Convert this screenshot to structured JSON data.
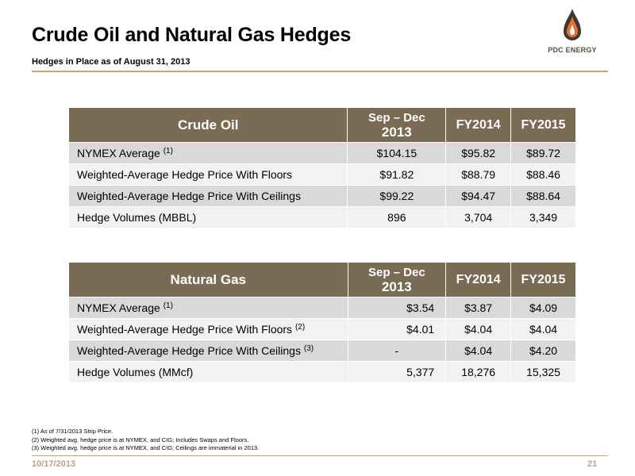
{
  "header": {
    "title": "Crude Oil and Natural Gas Hedges",
    "subtitle": "Hedges in Place as of August 31, 2013",
    "logo_text": "PDC ENERGY"
  },
  "colors": {
    "table_header": "#7a6b54",
    "row_shade": "#d9d9d9",
    "row_light": "#f2f2f2",
    "accent_rule": "#c8a574",
    "logo_orange": "#e8722b",
    "logo_dark": "#3d3a36"
  },
  "oil_table": {
    "columns": [
      "Crude Oil",
      "Sep – Dec",
      "2013",
      "FY2014",
      "FY2015"
    ],
    "rows": [
      {
        "label": "NYMEX Average",
        "note": "(1)",
        "values": [
          "$104.15",
          "$95.82",
          "$89.72"
        ]
      },
      {
        "label": "Weighted-Average Hedge Price With Floors",
        "note": "",
        "values": [
          "$91.82",
          "$88.79",
          "$88.46"
        ]
      },
      {
        "label": "Weighted-Average Hedge Price With Ceilings",
        "note": "",
        "values": [
          "$99.22",
          "$94.47",
          "$88.64"
        ]
      },
      {
        "label": "Hedge Volumes (MBBL)",
        "note": "",
        "values": [
          "896",
          "3,704",
          "3,349"
        ]
      }
    ]
  },
  "gas_table": {
    "columns": [
      "Natural Gas",
      "Sep – Dec",
      "2013",
      "FY2014",
      "FY2015"
    ],
    "rows": [
      {
        "label": "NYMEX Average",
        "note": "(1)",
        "values": [
          "$3.54",
          "$3.87",
          "$4.09"
        ]
      },
      {
        "label": "Weighted-Average Hedge Price With Floors",
        "note": "(2)",
        "values": [
          "$4.01",
          "$4.04",
          "$4.04"
        ]
      },
      {
        "label": "Weighted-Average Hedge Price With Ceilings",
        "note": "(3)",
        "values": [
          "-",
          "$4.04",
          "$4.20"
        ]
      },
      {
        "label": "Hedge Volumes (MMcf)",
        "note": "",
        "values": [
          "5,377",
          "18,276",
          "15,325"
        ]
      }
    ]
  },
  "footnotes": [
    "(1) As of 7/31/2013 Strip Price.",
    "(2) Weighted avg. hedge price is at NYMEX, and CIG; Includes Swaps and Floors.",
    "(3) Weighted avg. hedge price is at NYMEX, and CIG; Ceilings are immaterial in 2013."
  ],
  "footer": {
    "date": "10/17/2013",
    "page": "21"
  }
}
